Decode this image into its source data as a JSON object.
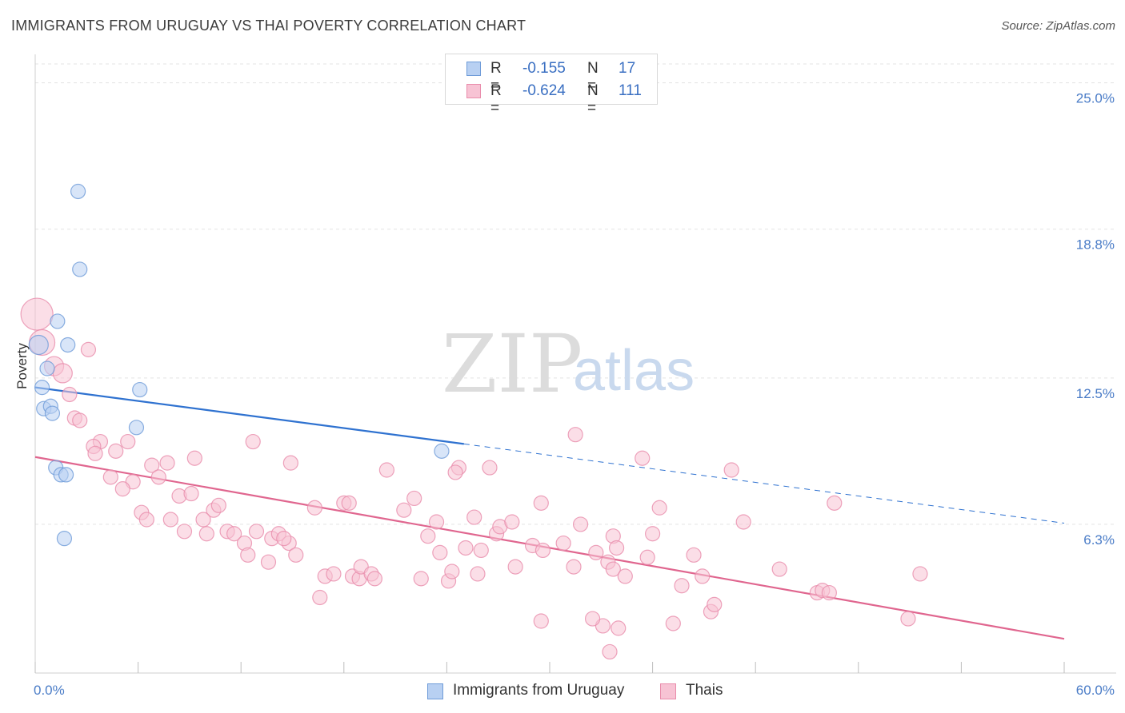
{
  "title": "IMMIGRANTS FROM URUGUAY VS THAI POVERTY CORRELATION CHART",
  "source": "Source: ZipAtlas.com",
  "watermark": {
    "zip": "ZIP",
    "atlas": "atlas"
  },
  "legend": {
    "rows": [
      {
        "r_label": "R =",
        "r_value": "-0.155",
        "n_label": "N =",
        "n_value": "17"
      },
      {
        "r_label": "R =",
        "r_value": "-0.624",
        "n_label": "N =",
        "n_value": "111"
      }
    ]
  },
  "bottom_legend": [
    "Immigrants from Uruguay",
    "Thais"
  ],
  "colors": {
    "uruguay_fill": "#b8d0f2",
    "uruguay_stroke": "#6e9bd8",
    "uruguay_line": "#2f72d0",
    "thai_fill": "#f7c3d4",
    "thai_stroke": "#e98cab",
    "thai_line": "#e0668f",
    "grid": "#e3e3e3",
    "tick_text": "#4a7cc7"
  },
  "chart_data": {
    "type": "scatter",
    "title": "IMMIGRANTS FROM URUGUAY VS THAI POVERTY CORRELATION CHART",
    "xlabel": "",
    "ylabel": "Poverty",
    "xlim": [
      0,
      60
    ],
    "ylim": [
      0,
      25.8
    ],
    "x_tick_labels": [
      "0.0%",
      "60.0%"
    ],
    "y_ticks": [
      6.3,
      12.5,
      18.8,
      25.0
    ],
    "y_tick_labels": [
      "6.3%",
      "12.5%",
      "18.8%",
      "25.0%"
    ],
    "grid": true,
    "legend_position": "top-center",
    "series": [
      {
        "name": "Immigrants from Uruguay",
        "r": -0.155,
        "n": 17,
        "points": [
          [
            2.5,
            20.4
          ],
          [
            2.6,
            17.1
          ],
          [
            1.3,
            14.9
          ],
          [
            0.2,
            13.9
          ],
          [
            1.9,
            13.9
          ],
          [
            0.7,
            12.9
          ],
          [
            6.1,
            12.0
          ],
          [
            0.4,
            12.1
          ],
          [
            0.5,
            11.2
          ],
          [
            0.9,
            11.3
          ],
          [
            1.0,
            11.0
          ],
          [
            5.9,
            10.4
          ],
          [
            1.2,
            8.7
          ],
          [
            1.5,
            8.4
          ],
          [
            1.8,
            8.4
          ],
          [
            1.7,
            5.7
          ],
          [
            23.7,
            9.4
          ]
        ],
        "trend": {
          "x_start": 0,
          "y_start": 12.1,
          "x_solid_end": 25,
          "x_end": 60,
          "y_end": 6.35
        }
      },
      {
        "name": "Thais",
        "r": -0.624,
        "n": 111,
        "points": [
          [
            0.1,
            15.2
          ],
          [
            0.4,
            14.0
          ],
          [
            3.1,
            13.7
          ],
          [
            1.1,
            13.0
          ],
          [
            1.6,
            12.7
          ],
          [
            2.0,
            11.8
          ],
          [
            2.3,
            10.8
          ],
          [
            2.6,
            10.7
          ],
          [
            3.8,
            9.8
          ],
          [
            3.4,
            9.6
          ],
          [
            3.5,
            9.3
          ],
          [
            4.7,
            9.4
          ],
          [
            5.4,
            9.8
          ],
          [
            6.8,
            8.8
          ],
          [
            7.7,
            8.9
          ],
          [
            9.3,
            9.1
          ],
          [
            12.7,
            9.8
          ],
          [
            14.9,
            8.9
          ],
          [
            4.4,
            8.3
          ],
          [
            5.7,
            8.1
          ],
          [
            5.1,
            7.8
          ],
          [
            7.2,
            8.3
          ],
          [
            8.4,
            7.5
          ],
          [
            9.1,
            7.6
          ],
          [
            10.4,
            6.9
          ],
          [
            10.7,
            7.1
          ],
          [
            6.2,
            6.8
          ],
          [
            6.5,
            6.5
          ],
          [
            7.9,
            6.5
          ],
          [
            8.7,
            6.0
          ],
          [
            9.8,
            6.5
          ],
          [
            10.0,
            5.9
          ],
          [
            11.2,
            6.0
          ],
          [
            11.6,
            5.9
          ],
          [
            12.2,
            5.5
          ],
          [
            12.4,
            5.0
          ],
          [
            12.9,
            6.0
          ],
          [
            13.6,
            4.7
          ],
          [
            13.8,
            5.7
          ],
          [
            14.2,
            5.9
          ],
          [
            14.8,
            5.5
          ],
          [
            15.2,
            5.0
          ],
          [
            14.5,
            5.7
          ],
          [
            16.3,
            7.0
          ],
          [
            16.9,
            4.1
          ],
          [
            17.4,
            4.2
          ],
          [
            16.6,
            3.2
          ],
          [
            18.0,
            7.2
          ],
          [
            18.3,
            7.2
          ],
          [
            18.5,
            4.1
          ],
          [
            18.9,
            4.0
          ],
          [
            19.0,
            4.5
          ],
          [
            19.6,
            4.2
          ],
          [
            20.5,
            8.6
          ],
          [
            19.8,
            4.0
          ],
          [
            21.5,
            6.9
          ],
          [
            22.1,
            7.4
          ],
          [
            22.5,
            4.0
          ],
          [
            22.9,
            5.8
          ],
          [
            23.4,
            6.4
          ],
          [
            23.6,
            5.1
          ],
          [
            24.1,
            3.9
          ],
          [
            24.3,
            4.3
          ],
          [
            24.7,
            8.7
          ],
          [
            25.6,
            6.6
          ],
          [
            25.1,
            5.3
          ],
          [
            25.8,
            4.2
          ],
          [
            26.0,
            5.2
          ],
          [
            26.9,
            5.9
          ],
          [
            27.1,
            6.2
          ],
          [
            27.8,
            6.4
          ],
          [
            28.0,
            4.5
          ],
          [
            29.0,
            5.4
          ],
          [
            29.5,
            7.2
          ],
          [
            29.6,
            5.2
          ],
          [
            30.8,
            5.5
          ],
          [
            31.5,
            10.1
          ],
          [
            31.4,
            4.5
          ],
          [
            31.8,
            6.3
          ],
          [
            32.7,
            5.1
          ],
          [
            33.4,
            4.7
          ],
          [
            33.7,
            4.4
          ],
          [
            33.1,
            2.0
          ],
          [
            33.5,
            0.9
          ],
          [
            33.7,
            5.8
          ],
          [
            33.9,
            5.3
          ],
          [
            34.0,
            1.9
          ],
          [
            34.4,
            4.1
          ],
          [
            35.4,
            9.1
          ],
          [
            35.7,
            4.9
          ],
          [
            36.0,
            5.9
          ],
          [
            36.4,
            7.0
          ],
          [
            37.7,
            3.7
          ],
          [
            38.4,
            5.0
          ],
          [
            38.9,
            4.1
          ],
          [
            39.4,
            2.6
          ],
          [
            39.6,
            2.9
          ],
          [
            40.6,
            8.6
          ],
          [
            41.3,
            6.4
          ],
          [
            43.4,
            4.4
          ],
          [
            45.6,
            3.4
          ],
          [
            45.9,
            3.5
          ],
          [
            46.3,
            3.4
          ],
          [
            46.6,
            7.2
          ],
          [
            50.9,
            2.3
          ],
          [
            51.6,
            4.2
          ],
          [
            37.2,
            2.1
          ],
          [
            29.5,
            2.2
          ],
          [
            32.5,
            2.3
          ],
          [
            26.5,
            8.7
          ],
          [
            24.5,
            8.5
          ]
        ],
        "trend": {
          "x_start": 0,
          "y_start": 9.15,
          "x_end": 60,
          "y_end": 1.45
        }
      }
    ]
  }
}
